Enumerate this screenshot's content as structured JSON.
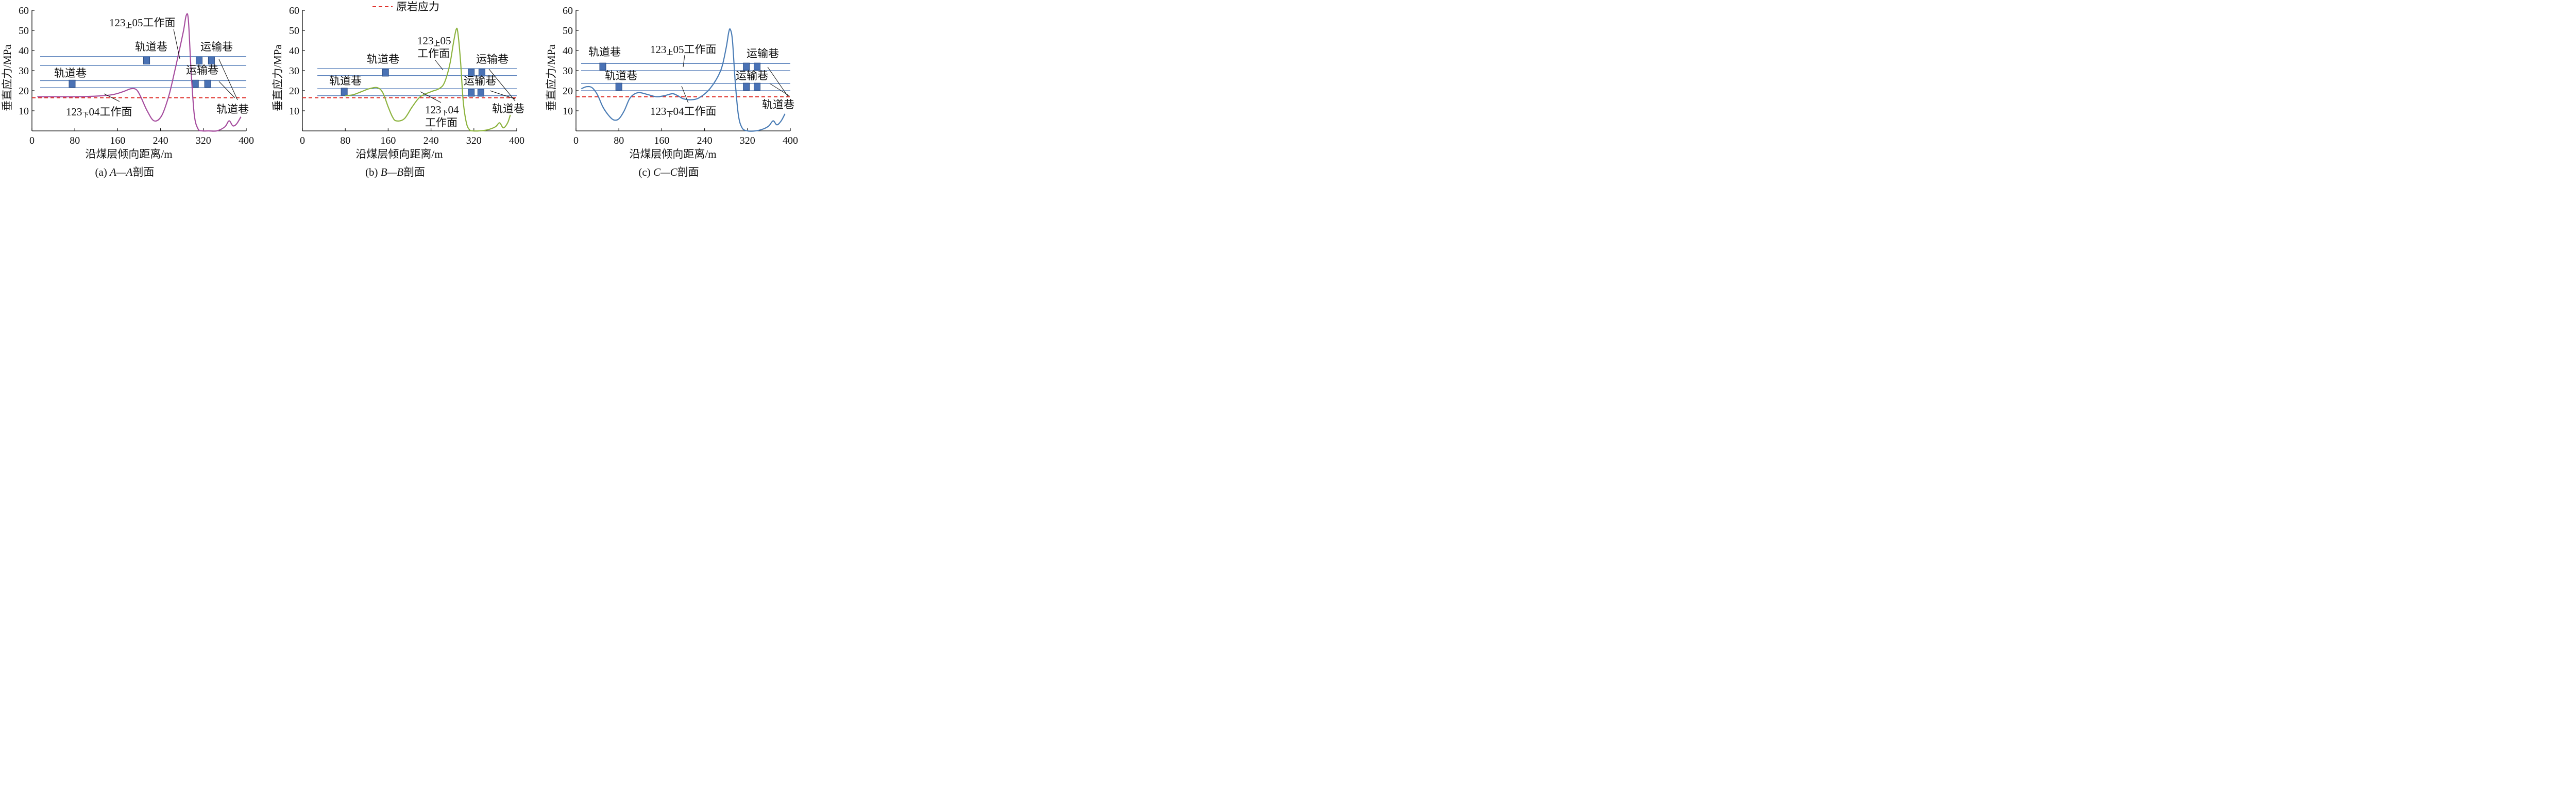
{
  "legend": {
    "label": "原岩应力"
  },
  "colors": {
    "line_a": "#a64d9e",
    "line_b": "#8cb33e",
    "line_c": "#4a7cb5",
    "reference": "#e0312b",
    "seam": "#4a75b5",
    "roadway_fill": "#4a72b5",
    "roadway_edge": "#2a4a80"
  },
  "chart_data": [
    {
      "type": "line",
      "caption": {
        "prefix": "(a)",
        "italic": "A—A",
        "suffix": "剖面"
      },
      "xlabel": "沿煤层倾向距离/m",
      "ylabel": "垂直应力/MPa",
      "xlim": [
        0,
        400
      ],
      "ylim": [
        0,
        60
      ],
      "xticks": [
        0,
        80,
        160,
        240,
        320,
        400
      ],
      "yticks": [
        10,
        20,
        30,
        40,
        50,
        60
      ],
      "reference": {
        "name": "原岩应力",
        "y": 16.5
      },
      "series": [
        {
          "x": [
            10,
            40,
            80,
            120,
            150,
            170,
            185,
            195,
            203,
            215,
            228,
            242,
            255,
            265,
            275,
            283,
            288,
            292,
            297,
            303,
            310,
            318,
            330,
            345,
            360,
            368,
            375,
            382,
            390
          ],
          "y": [
            17,
            17,
            17,
            17.3,
            18,
            19.5,
            21,
            20.5,
            17,
            10,
            5,
            7.5,
            17,
            28,
            40,
            50,
            57.5,
            55,
            30,
            8,
            1,
            0,
            0,
            0,
            2,
            5,
            2.5,
            3.5,
            7
          ]
        }
      ],
      "seams": [
        {
          "y_left": 37,
          "y_right": 37
        },
        {
          "y_left": 32.5,
          "y_right": 32.5
        },
        {
          "y_left": 25,
          "y_right": 25
        },
        {
          "y_left": 21.5,
          "y_right": 21.5
        }
      ],
      "roadways": [
        {
          "x": 75,
          "y": 23.5
        },
        {
          "x": 214,
          "y": 35
        },
        {
          "x": 312,
          "y": 35
        },
        {
          "x": 335,
          "y": 35
        },
        {
          "x": 305,
          "y": 23.5
        },
        {
          "x": 328,
          "y": 23.5
        }
      ],
      "annotations": [
        {
          "parts": [
            "123",
            "上",
            "05工作面"
          ]
        },
        {
          "parts": [
            "轨道巷"
          ]
        },
        {
          "parts": [
            "运输巷"
          ]
        },
        {
          "parts": [
            "轨道巷"
          ]
        },
        {
          "parts": [
            "运输巷"
          ]
        },
        {
          "parts": [
            "123",
            "下",
            "04工作面"
          ]
        },
        {
          "parts": [
            "轨道巷"
          ]
        }
      ]
    },
    {
      "type": "line",
      "caption": {
        "prefix": "(b)",
        "italic": "B—B",
        "suffix": "剖面"
      },
      "xlabel": "沿煤层倾向距离/m",
      "ylabel": "垂直应力/MPa",
      "xlim": [
        0,
        400
      ],
      "ylim": [
        0,
        60
      ],
      "xticks": [
        0,
        80,
        160,
        240,
        320,
        400
      ],
      "yticks": [
        10,
        20,
        30,
        40,
        50,
        60
      ],
      "reference": {
        "name": "原岩应力",
        "y": 16.5
      },
      "series": [
        {
          "x": [
            80,
            95,
            110,
            125,
            140,
            150,
            160,
            168,
            175,
            190,
            205,
            220,
            240,
            255,
            265,
            275,
            282,
            287,
            290,
            295,
            300,
            306,
            312,
            318,
            330,
            345,
            360,
            368,
            375,
            383,
            388
          ],
          "y": [
            17.5,
            18,
            19.5,
            21,
            21.5,
            19,
            12,
            7,
            5,
            6,
            12,
            17,
            19.5,
            21,
            24,
            33,
            44,
            50.5,
            49,
            35,
            15,
            4,
            0.5,
            0,
            0,
            0.5,
            2,
            4,
            1.5,
            4,
            8
          ]
        }
      ],
      "seams": [
        {
          "y_left": 31,
          "y_right": 31
        },
        {
          "y_left": 27.5,
          "y_right": 27.5
        },
        {
          "y_left": 21,
          "y_right": 21
        },
        {
          "y_left": 17.5,
          "y_right": 17.5
        }
      ],
      "roadways": [
        {
          "x": 78,
          "y": 19.5
        },
        {
          "x": 155,
          "y": 29
        },
        {
          "x": 315,
          "y": 29
        },
        {
          "x": 335,
          "y": 29
        },
        {
          "x": 315,
          "y": 19
        },
        {
          "x": 333,
          "y": 19
        }
      ],
      "annotations": [
        {
          "parts": [
            "123",
            "上",
            "05"
          ]
        },
        {
          "parts": [
            "工作面"
          ]
        },
        {
          "parts": [
            "轨道巷"
          ]
        },
        {
          "parts": [
            "运输巷"
          ]
        },
        {
          "parts": [
            "轨道巷"
          ]
        },
        {
          "parts": [
            "运输巷"
          ]
        },
        {
          "parts": [
            "123",
            "下",
            "04"
          ]
        },
        {
          "parts": [
            "工作面"
          ]
        },
        {
          "parts": [
            "轨道巷"
          ]
        }
      ]
    },
    {
      "type": "line",
      "caption": {
        "prefix": "(c)",
        "italic": "C—C",
        "suffix": "剖面"
      },
      "xlabel": "沿煤层倾向距离/m",
      "ylabel": "垂直应力/MPa",
      "xlim": [
        0,
        400
      ],
      "ylim": [
        0,
        60
      ],
      "xticks": [
        0,
        80,
        160,
        240,
        320,
        400
      ],
      "yticks": [
        10,
        20,
        30,
        40,
        50,
        60
      ],
      "reference": {
        "name": "原岩应力",
        "y": 17
      },
      "series": [
        {
          "x": [
            10,
            20,
            30,
            40,
            50,
            60,
            70,
            80,
            90,
            100,
            110,
            120,
            135,
            150,
            165,
            180,
            190,
            200,
            215,
            230,
            250,
            270,
            280,
            285,
            288,
            292,
            297,
            303,
            310,
            320,
            335,
            350,
            360,
            368,
            375,
            383,
            390
          ],
          "y": [
            21,
            22,
            21.5,
            18,
            12,
            8,
            5.5,
            6,
            10,
            16,
            18.5,
            19,
            18,
            17,
            17.5,
            18.5,
            17.5,
            16,
            15.5,
            16.5,
            21,
            30,
            41,
            49,
            50.5,
            45,
            25,
            8,
            1.5,
            0,
            0,
            1,
            2.5,
            5,
            3,
            5,
            8.5
          ]
        }
      ],
      "seams": [
        {
          "y_left": 33.5,
          "y_right": 33.5
        },
        {
          "y_left": 30,
          "y_right": 30
        },
        {
          "y_left": 23.5,
          "y_right": 23.5
        },
        {
          "y_left": 20,
          "y_right": 20
        }
      ],
      "roadways": [
        {
          "x": 50,
          "y": 32
        },
        {
          "x": 80,
          "y": 22
        },
        {
          "x": 318,
          "y": 32
        },
        {
          "x": 338,
          "y": 32
        },
        {
          "x": 318,
          "y": 22
        },
        {
          "x": 338,
          "y": 22
        }
      ],
      "annotations": [
        {
          "parts": [
            "轨道巷"
          ]
        },
        {
          "parts": [
            "123",
            "上",
            "05工作面"
          ]
        },
        {
          "parts": [
            "运输巷"
          ]
        },
        {
          "parts": [
            "轨道巷"
          ]
        },
        {
          "parts": [
            "运输巷"
          ]
        },
        {
          "parts": [
            "123",
            "下",
            "04工作面"
          ]
        },
        {
          "parts": [
            "轨道巷"
          ]
        }
      ]
    }
  ]
}
